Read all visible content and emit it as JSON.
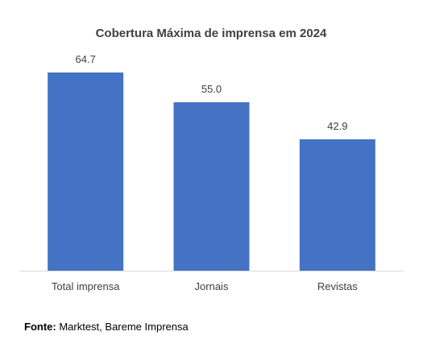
{
  "chart_data": {
    "type": "bar",
    "title": "Cobertura Máxima de imprensa em 2024",
    "xlabel": "",
    "ylabel": "",
    "categories": [
      "Total imprensa",
      "Jornais",
      "Revistas"
    ],
    "values": [
      64.7,
      55.0,
      42.9
    ],
    "value_labels": [
      "64.7",
      "55.0",
      "42.9"
    ],
    "ylim": [
      0,
      64.7
    ],
    "bar_color": "#4472C4",
    "grid": false,
    "legend": "none"
  },
  "source": {
    "key": "Fonte:",
    "text": " Marktest, Bareme Imprensa"
  }
}
